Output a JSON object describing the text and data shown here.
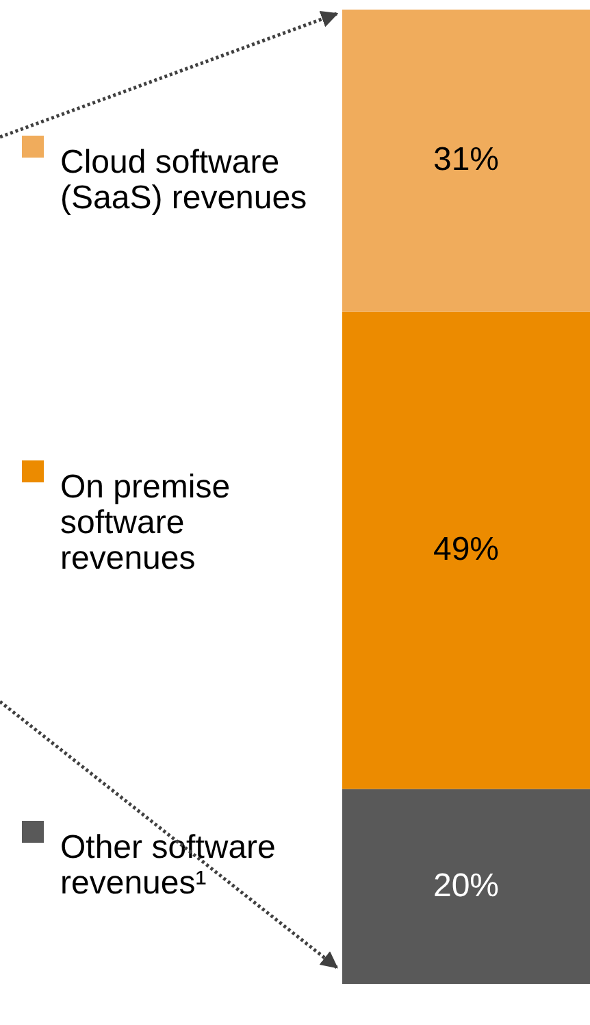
{
  "chart_data": {
    "type": "bar",
    "stacked": true,
    "categories": [
      null
    ],
    "legend": "left",
    "series": [
      {
        "name": "Other software revenues¹",
        "color": "#595959",
        "values": [
          20
        ],
        "value_labels": [
          "20%"
        ]
      },
      {
        "name": "On premise software revenues",
        "color": "#ec8b00",
        "values": [
          49
        ],
        "value_labels": [
          "49%"
        ]
      },
      {
        "name": "Cloud software (SaaS) revenues",
        "color": "#f0ac5c",
        "values": [
          31
        ],
        "value_labels": [
          "31%"
        ]
      }
    ]
  }
}
